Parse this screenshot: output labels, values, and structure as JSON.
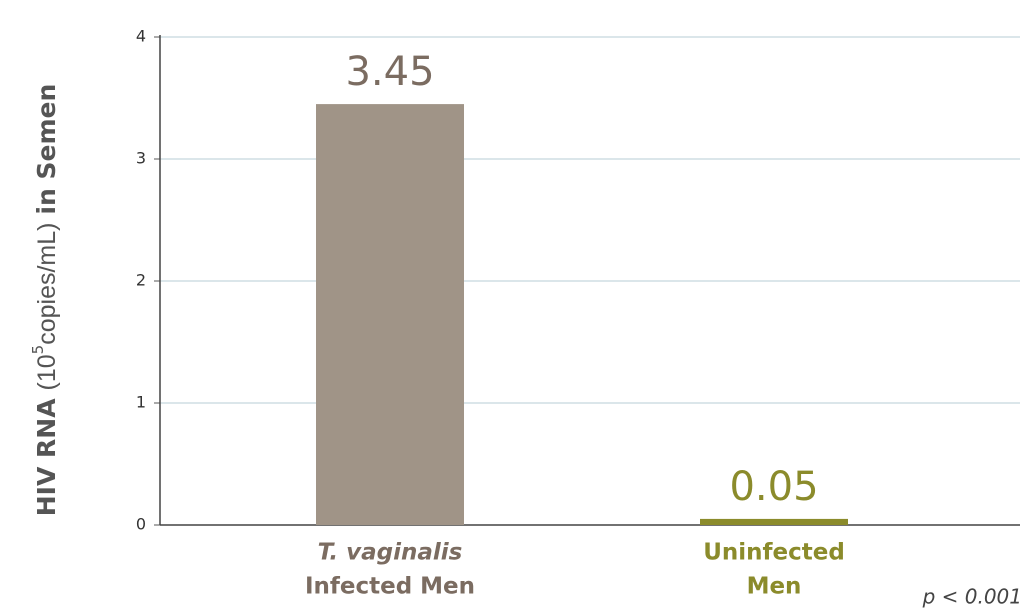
{
  "chart_data": {
    "type": "bar",
    "ylabel": {
      "lead": "HIV RNA",
      "open": "(10",
      "exponent": "5",
      "unit": "copies/mL)",
      "tail": "in Semen"
    },
    "categories": [
      [
        "T. vaginalis",
        "Infected Men"
      ],
      [
        "Uninfected",
        "Men"
      ]
    ],
    "values": [
      3.45,
      0.05
    ],
    "colors": [
      "#a09487",
      "#8b8b2b"
    ],
    "label_colors": [
      "#7b6c61",
      "#8b8b2b"
    ],
    "ylim": [
      0,
      4
    ],
    "yticks": [
      0,
      1,
      2,
      3,
      4
    ],
    "grid": true,
    "annotation": "p < 0.001"
  }
}
